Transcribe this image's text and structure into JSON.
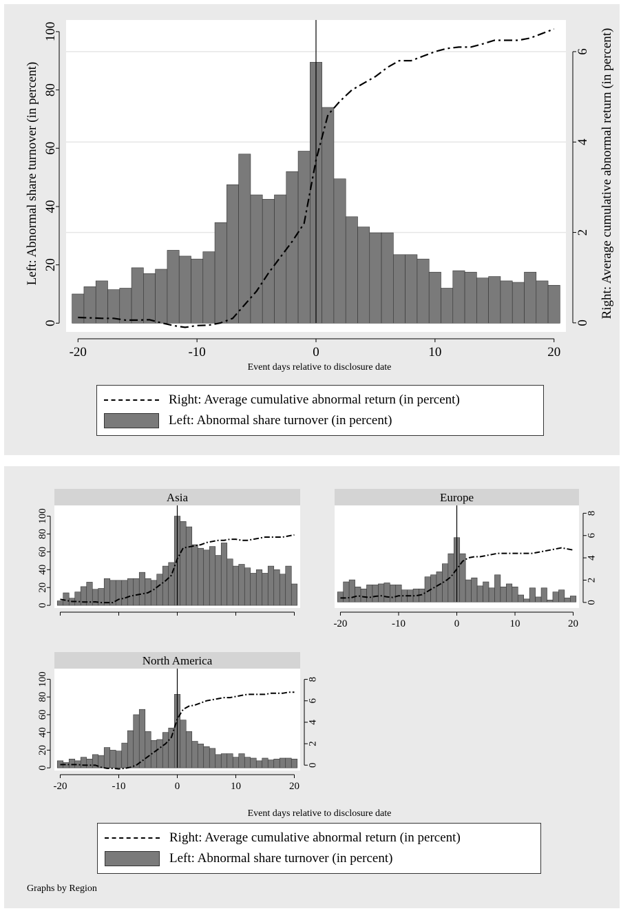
{
  "chart_data": [
    {
      "type": "bar",
      "panel": "Pooled",
      "x": [
        -20,
        -19,
        -18,
        -17,
        -16,
        -15,
        -14,
        -13,
        -12,
        -11,
        -10,
        -9,
        -8,
        -7,
        -6,
        -5,
        -4,
        -3,
        -2,
        -1,
        0,
        1,
        2,
        3,
        4,
        5,
        6,
        7,
        8,
        9,
        10,
        11,
        12,
        13,
        14,
        15,
        16,
        17,
        18,
        19,
        20
      ],
      "series": [
        {
          "name": "Left: Abnormal share turnover (in percent)",
          "axis": "left",
          "values": [
            10,
            12.5,
            14.5,
            11.5,
            12,
            19,
            17,
            18.5,
            25,
            23,
            22,
            24.5,
            34.5,
            47.5,
            58,
            44,
            42.5,
            44,
            52,
            59,
            89.5,
            74,
            49.5,
            36.5,
            33,
            31,
            31,
            23.5,
            23.5,
            22,
            17.5,
            12,
            18,
            17.5,
            15.5,
            16,
            14.5,
            14,
            17.5,
            14.5,
            13
          ]
        },
        {
          "name": "Right: Average cumulative abnormal return (in percent)",
          "axis": "right",
          "values": [
            0.12,
            0.11,
            0.1,
            0.1,
            0.06,
            0.06,
            0.07,
            0,
            -0.06,
            -0.1,
            -0.06,
            -0.05,
            0,
            0.1,
            0.4,
            0.7,
            1.1,
            1.45,
            1.8,
            2.2,
            3.6,
            4.6,
            4.9,
            5.15,
            5.3,
            5.45,
            5.65,
            5.8,
            5.8,
            5.9,
            6,
            6.07,
            6.1,
            6.1,
            6.17,
            6.25,
            6.25,
            6.25,
            6.3,
            6.4,
            6.5
          ]
        }
      ],
      "xlabel": "Event days relative to disclosure date",
      "ylabel": "Left: Abnormal share turnover (in percent)",
      "ylabel_right": "Right: Average cumulative abnormal return (in percent)",
      "xlim": [
        -21,
        21
      ],
      "ylim": [
        -3,
        104
      ],
      "ylim_right": [
        -0.2,
        6.7
      ],
      "xticks": [
        -20,
        -10,
        0,
        10,
        20
      ],
      "yticks": [
        0,
        20,
        40,
        60,
        80,
        100
      ],
      "yticks_right": [
        0,
        2,
        4,
        6
      ],
      "xtick_labels": [
        "-20",
        "-10",
        "0",
        "10",
        "20"
      ],
      "ytick_labels": [
        "0",
        "20",
        "40",
        "60",
        "80",
        "100"
      ],
      "ytick_right_labels": [
        "0",
        "2",
        "4",
        "6"
      ],
      "event_line_x": 0
    },
    {
      "type": "bar",
      "panel": "Asia",
      "x": [
        -20,
        -19,
        -18,
        -17,
        -16,
        -15,
        -14,
        -13,
        -12,
        -11,
        -10,
        -9,
        -8,
        -7,
        -6,
        -5,
        -4,
        -3,
        -2,
        -1,
        0,
        1,
        2,
        3,
        4,
        5,
        6,
        7,
        8,
        9,
        10,
        11,
        12,
        13,
        14,
        15,
        16,
        17,
        18,
        19,
        20
      ],
      "series": [
        {
          "name": "Left: Abnormal share turnover (in percent)",
          "axis": "left",
          "values": [
            5,
            14,
            8,
            15,
            21,
            26,
            18,
            19,
            30,
            28,
            28,
            28,
            30,
            30,
            37,
            30,
            28,
            35,
            44,
            48,
            100,
            94,
            88,
            68,
            64,
            62,
            66,
            56,
            70,
            52,
            44,
            46,
            42,
            36,
            40,
            36,
            44,
            40,
            35,
            44,
            24
          ]
        },
        {
          "name": "Right: Average cumulative abnormal return (in percent)",
          "axis": "right",
          "values": [
            0.3,
            0.2,
            0.1,
            0.1,
            0.05,
            0.05,
            0.07,
            0,
            0,
            0,
            0.3,
            0.4,
            0.6,
            0.7,
            0.8,
            0.9,
            1.2,
            1.6,
            2,
            2.5,
            4,
            5,
            5.1,
            5.2,
            5.3,
            5.5,
            5.6,
            5.7,
            5.7,
            5.8,
            5.8,
            5.7,
            5.7,
            5.8,
            5.9,
            6.0,
            6.0,
            6.0,
            6.0,
            6.1,
            6.2
          ]
        }
      ],
      "title": "Asia",
      "xlim": [
        -21,
        21
      ],
      "ylim": [
        -3,
        112
      ],
      "ylim_right": [
        -0.5,
        8.9
      ],
      "ytick_labels": [
        "0",
        "20",
        "40",
        "60",
        "80",
        "100"
      ],
      "event_line_x": 0
    },
    {
      "type": "bar",
      "panel": "Europe",
      "x": [
        -20,
        -19,
        -18,
        -17,
        -16,
        -15,
        -14,
        -13,
        -12,
        -11,
        -10,
        -9,
        -8,
        -7,
        -6,
        -5,
        -4,
        -3,
        -2,
        -1,
        0,
        1,
        2,
        3,
        4,
        5,
        6,
        7,
        8,
        9,
        10,
        11,
        12,
        13,
        14,
        15,
        16,
        17,
        18,
        19,
        20
      ],
      "series": [
        {
          "name": "Left: Abnormal share turnover (in percent)",
          "axis": "left",
          "values": [
            10,
            20,
            22,
            15,
            13,
            17,
            17,
            18,
            19,
            17,
            17,
            12,
            12,
            13,
            13,
            25,
            27,
            30,
            38,
            48,
            64,
            48,
            22,
            24,
            16,
            20,
            14,
            27,
            15,
            18,
            15,
            7,
            3,
            14,
            5,
            14,
            2,
            10,
            12,
            4,
            6
          ]
        },
        {
          "name": "Right: Average cumulative abnormal return (in percent)",
          "axis": "right",
          "values": [
            0.4,
            0.4,
            0.45,
            0.6,
            0.5,
            0.45,
            0.55,
            0.6,
            0.5,
            0.45,
            0.6,
            0.6,
            0.6,
            0.6,
            0.7,
            1.0,
            1.3,
            1.6,
            1.9,
            2.3,
            3.0,
            3.7,
            4.0,
            4.1,
            4.1,
            4.2,
            4.3,
            4.4,
            4.4,
            4.4,
            4.4,
            4.4,
            4.4,
            4.4,
            4.5,
            4.6,
            4.7,
            4.8,
            4.9,
            4.8,
            4.7
          ]
        }
      ],
      "title": "Europe",
      "xlim": [
        -21,
        21
      ],
      "ylim": [
        -6,
        96
      ],
      "ylim_right": [
        -0.5,
        8.7
      ],
      "xtick_labels": [
        "-20",
        "-10",
        "0",
        "10",
        "20"
      ],
      "ytick_right_labels": [
        "0",
        "2",
        "4",
        "6",
        "8"
      ],
      "event_line_x": 0
    },
    {
      "type": "bar",
      "panel": "North America",
      "x": [
        -20,
        -19,
        -18,
        -17,
        -16,
        -15,
        -14,
        -13,
        -12,
        -11,
        -10,
        -9,
        -8,
        -7,
        -6,
        -5,
        -4,
        -3,
        -2,
        -1,
        0,
        1,
        2,
        3,
        4,
        5,
        6,
        7,
        8,
        9,
        10,
        11,
        12,
        13,
        14,
        15,
        16,
        17,
        18,
        19,
        20
      ],
      "series": [
        {
          "name": "Left: Abnormal share turnover (in percent)",
          "axis": "left",
          "values": [
            8,
            6,
            10,
            8,
            12,
            10,
            15,
            14,
            23,
            20,
            19,
            28,
            42,
            60,
            66,
            41,
            31,
            32,
            40,
            45,
            83,
            54,
            41,
            30,
            27,
            24,
            22,
            15,
            16,
            16,
            12,
            16,
            12,
            11,
            8,
            11,
            9,
            10,
            11,
            11,
            10
          ]
        },
        {
          "name": "Right: Average cumulative abnormal return (in percent)",
          "axis": "right",
          "values": [
            0.05,
            0.05,
            0.05,
            0.05,
            0.0,
            0.0,
            0.0,
            -0.2,
            -0.3,
            -0.3,
            -0.35,
            -0.3,
            -0.2,
            0,
            0.4,
            0.8,
            1.2,
            1.6,
            2.0,
            2.6,
            4.3,
            5.2,
            5.5,
            5.6,
            5.8,
            6.0,
            6.1,
            6.2,
            6.3,
            6.3,
            6.4,
            6.5,
            6.6,
            6.6,
            6.6,
            6.6,
            6.7,
            6.7,
            6.7,
            6.8,
            6.8
          ]
        }
      ],
      "title": "North America",
      "xlim": [
        -21,
        21
      ],
      "ylim": [
        -3,
        112
      ],
      "ylim_right": [
        -0.5,
        9
      ],
      "xtick_labels": [
        "-20",
        "-10",
        "0",
        "10",
        "20"
      ],
      "ytick_labels": [
        "0",
        "20",
        "40",
        "60",
        "80",
        "100"
      ],
      "ytick_right_labels": [
        "0",
        "2",
        "4",
        "6",
        "8"
      ],
      "event_line_x": 0
    }
  ],
  "top_legend": {
    "line_label": "Right: Average cumulative abnormal return (in percent)",
    "bar_label": "Left: Abnormal share turnover (in percent)"
  },
  "bottom_legend": {
    "line_label": "Right: Average cumulative abnormal return (in percent)",
    "bar_label": "Left: Abnormal share turnover (in percent)"
  },
  "bottom_xlabel": "Event days relative to disclosure date",
  "note": "Graphs by Region",
  "colors": {
    "bar": "#7a7a7a",
    "bar_edge": "#333333",
    "strip": "#d4d4d4",
    "panel_bg": "#eaeaea",
    "grid": "#e6e6e6"
  }
}
